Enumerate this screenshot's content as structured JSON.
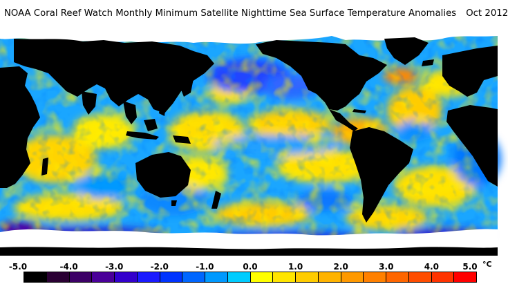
{
  "title": {
    "text": "NOAA Coral Reef Watch Monthly Minimum Satellite Nighttime Sea Surface Temperature Anomalies",
    "date": "Oct 2012"
  },
  "legend": {
    "unit": "°C",
    "ticks": [
      "-5.0",
      "-4.0",
      "-3.0",
      "-2.0",
      "-1.0",
      "0.0",
      "1.0",
      "2.0",
      "3.0",
      "4.0",
      "5.0"
    ],
    "colors": [
      "#000000",
      "#2a0033",
      "#3c0066",
      "#4a0099",
      "#3300cc",
      "#1a1aff",
      "#0033ff",
      "#0066ff",
      "#0099ff",
      "#00ccff",
      "#ffff00",
      "#ffe500",
      "#ffcc00",
      "#ffb300",
      "#ff9900",
      "#ff8000",
      "#ff6600",
      "#ff4d00",
      "#ff3300",
      "#ff0000"
    ],
    "land_color": "#000000",
    "ice_color": "#ffffff"
  },
  "map": {
    "projection": "equirectangular",
    "longitude_range": [
      20,
      380
    ],
    "latitude_range": [
      -90,
      90
    ],
    "content": "global ocean sea surface temperature anomaly field"
  }
}
